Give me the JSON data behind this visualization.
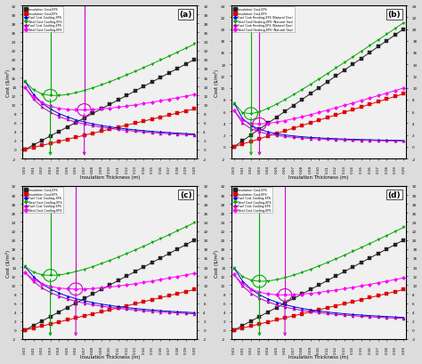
{
  "x": [
    0.0,
    0.01,
    0.02,
    0.03,
    0.04,
    0.05,
    0.06,
    0.07,
    0.08,
    0.09,
    0.1,
    0.11,
    0.12,
    0.13,
    0.14,
    0.15,
    0.16,
    0.17,
    0.18,
    0.19,
    0.2
  ],
  "panels": [
    {
      "label": "(a)",
      "ylabel": "Cost ($/m²)",
      "xlabel": "Insulation Thickness (m)",
      "ylim": [
        -2,
        32
      ],
      "yticks": [
        -2,
        0,
        2,
        4,
        6,
        8,
        10,
        12,
        14,
        16,
        18,
        20,
        22,
        24,
        26,
        28,
        30,
        32
      ],
      "opt_xps": 0.04,
      "opt_eps": 0.08,
      "fuel_type": "cool",
      "ins_xps_slope": 100,
      "ins_eps_slope": 45,
      "fuel_xps_a": 0.53,
      "fuel_xps_b": 0.038,
      "fuel_xps_c": 1.2,
      "fuel_eps_a": 0.48,
      "fuel_eps_b": 0.038,
      "fuel_eps_c": 1.2,
      "series": [
        {
          "name": "Insulation Cost-XPS",
          "color": "#222222",
          "marker": "s"
        },
        {
          "name": "Insulation Cost-EPS",
          "color": "#dd0000",
          "marker": "s"
        },
        {
          "name": "Fuel Cost Cooling-XPS",
          "color": "#0000dd",
          "marker": "^"
        },
        {
          "name": "Total Cost Cooling-XPS",
          "color": "#00aa00",
          "marker": "v"
        },
        {
          "name": "Fuel Cost Cooling-EPS",
          "color": "#bb00bb",
          "marker": "^"
        },
        {
          "name": "Total Cost Cooling-EPS",
          "color": "#ff00ff",
          "marker": "D"
        }
      ],
      "vline_xps_color": "#00aa00",
      "vline_eps_color": "#cc00cc",
      "circle_xps_color": "#00aa00",
      "circle_eps_color": "#cc00cc"
    },
    {
      "label": "(b)",
      "ylabel": "Cost ($/m²)",
      "xlabel": "Insulation Thickness (m)",
      "ylim": [
        -2,
        24
      ],
      "yticks": [
        -2,
        0,
        2,
        4,
        6,
        8,
        10,
        12,
        14,
        16,
        18,
        20,
        22,
        24
      ],
      "opt_xps": 0.02,
      "opt_eps": 0.05,
      "fuel_type": "heat",
      "ins_xps_slope": 100,
      "ins_eps_slope": 45,
      "fuel_xps_a": 0.11,
      "fuel_xps_b": 0.016,
      "fuel_xps_c": 0.55,
      "fuel_eps_a": 0.09,
      "fuel_eps_b": 0.016,
      "fuel_eps_c": 0.55,
      "series": [
        {
          "name": "Insulation Cost-XPS",
          "color": "#222222",
          "marker": "s"
        },
        {
          "name": "Insulation Cost-EPS",
          "color": "#dd0000",
          "marker": "s"
        },
        {
          "name": "Fuel Cost Heating-XPS (Natural Gas)",
          "color": "#0000dd",
          "marker": "^"
        },
        {
          "name": "Total Cost Heating-XPS (Natural Gas)",
          "color": "#00aa00",
          "marker": "v"
        },
        {
          "name": "Fuel Cost Heating-EPS (Natural Gas)",
          "color": "#bb00bb",
          "marker": "^"
        },
        {
          "name": "Total Cost Heating-EPS (Natural Gas)",
          "color": "#ff00ff",
          "marker": "D"
        }
      ],
      "vline_xps_color": "#00aa00",
      "vline_eps_color": "#cc00cc",
      "circle_xps_color": "#00aa00",
      "circle_eps_color": "#cc00cc"
    },
    {
      "label": "(c)",
      "ylabel": "Cost ($/m²)",
      "xlabel": "Insulation Thickness (m)",
      "ylim": [
        -2,
        32
      ],
      "yticks": [
        -2,
        0,
        2,
        4,
        6,
        8,
        10,
        12,
        14,
        16,
        18,
        20,
        22,
        24,
        26,
        28,
        30,
        32
      ],
      "opt_xps": 0.05,
      "opt_eps": 0.09,
      "fuel_type": "cool",
      "ins_xps_slope": 100,
      "ins_eps_slope": 45,
      "fuel_xps_a": 0.58,
      "fuel_xps_b": 0.046,
      "fuel_xps_c": 1.5,
      "fuel_eps_a": 0.52,
      "fuel_eps_b": 0.046,
      "fuel_eps_c": 1.5,
      "series": [
        {
          "name": "Insulation Cost-XPS",
          "color": "#222222",
          "marker": "s"
        },
        {
          "name": "Insulation Cost-EPS",
          "color": "#dd0000",
          "marker": "s"
        },
        {
          "name": "Fuel Cost Cooling-XPS",
          "color": "#0000dd",
          "marker": "^"
        },
        {
          "name": "Total Cost Cooling-XPS",
          "color": "#00aa00",
          "marker": "v"
        },
        {
          "name": "Fuel Cost Cooling-EPS",
          "color": "#bb00bb",
          "marker": "^"
        },
        {
          "name": "Total Cost Cooling-EPS",
          "color": "#ff00ff",
          "marker": "D"
        }
      ],
      "vline_xps_color": "#00aa00",
      "vline_eps_color": "#cc00cc",
      "circle_xps_color": "#00aa00",
      "circle_eps_color": "#cc00cc"
    },
    {
      "label": "(d)",
      "ylabel": "Cost ($/m²)",
      "xlabel": "Insulation Thickness (m)",
      "ylim": [
        -2,
        32
      ],
      "yticks": [
        -2,
        0,
        2,
        4,
        6,
        8,
        10,
        12,
        14,
        16,
        18,
        20,
        22,
        24,
        26,
        28,
        30,
        32
      ],
      "opt_xps": 0.04,
      "opt_eps": 0.08,
      "fuel_type": "cool",
      "ins_xps_slope": 100,
      "ins_eps_slope": 45,
      "fuel_xps_a": 0.45,
      "fuel_xps_b": 0.035,
      "fuel_xps_c": 0.9,
      "fuel_eps_a": 0.4,
      "fuel_eps_b": 0.035,
      "fuel_eps_c": 0.9,
      "series": [
        {
          "name": "Insulation Cost-XPS",
          "color": "#222222",
          "marker": "s"
        },
        {
          "name": "Insulation Cost-EPS",
          "color": "#dd0000",
          "marker": "s"
        },
        {
          "name": "Fuel Cost Cooling-XPS",
          "color": "#0000dd",
          "marker": "^"
        },
        {
          "name": "Total Cost Cooling-XPS",
          "color": "#00aa00",
          "marker": "v"
        },
        {
          "name": "Fuel Cost Cooling-EPS",
          "color": "#bb00bb",
          "marker": "^"
        },
        {
          "name": "Total Cost Cooling-EPS",
          "color": "#ff00ff",
          "marker": "D"
        }
      ],
      "vline_xps_color": "#00aa00",
      "vline_eps_color": "#cc00cc",
      "circle_xps_color": "#00aa00",
      "circle_eps_color": "#cc00cc"
    }
  ],
  "bg_color": "#dcdcdc",
  "plot_bg": "#f0f0f0"
}
